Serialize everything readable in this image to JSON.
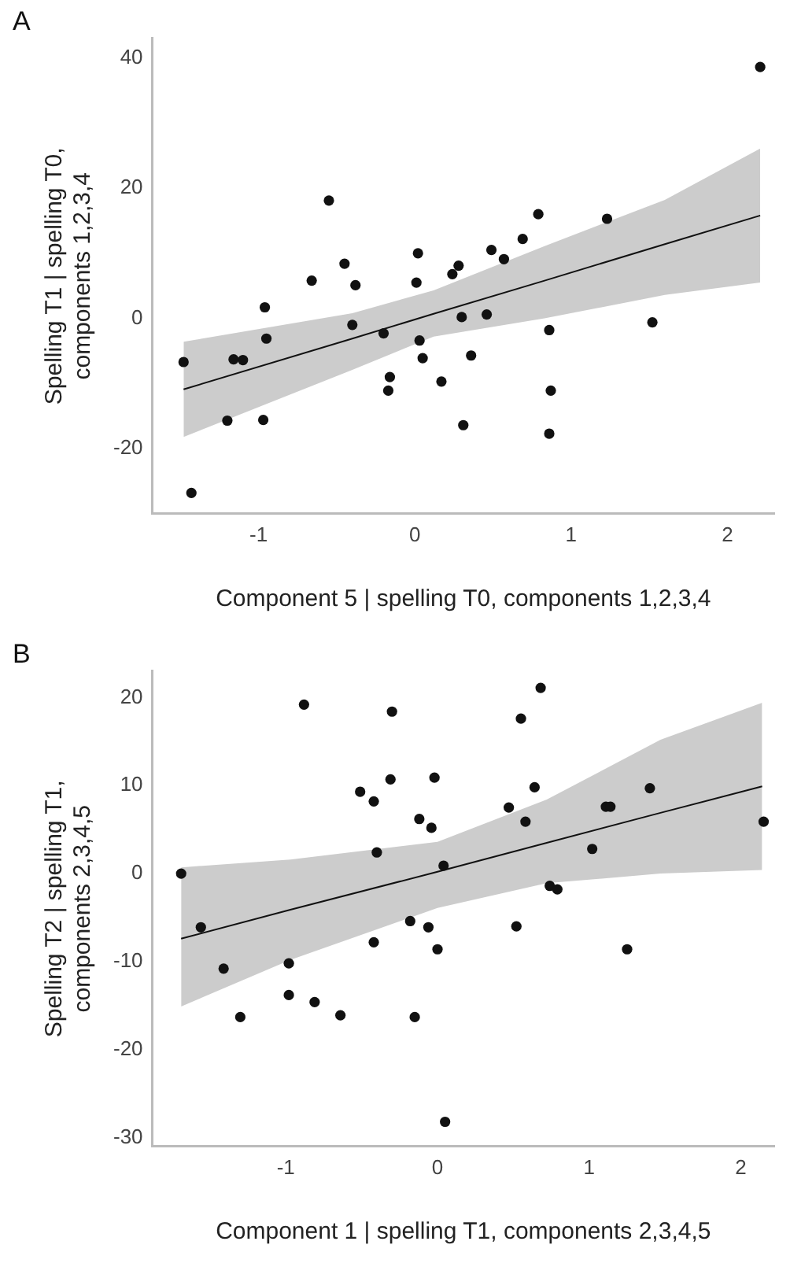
{
  "chart_data": [
    {
      "type": "scatter",
      "title": "A",
      "xlabel": "Component 5 | spelling T0, components 1,2,3,4",
      "ylabel": "Spelling T1 | spelling T0,\ncomponents 1,2,3,4",
      "grid": false,
      "marker": "circle",
      "xlim": [
        -1.68,
        2.3
      ],
      "ylim": [
        -30,
        43
      ],
      "xticks": [
        -1,
        0,
        1,
        2
      ],
      "yticks": [
        -20,
        0,
        20,
        40
      ],
      "series": [
        {
          "type": "line",
          "color": "#111111",
          "marker": "none",
          "x": [
            -1.48,
            -0.4,
            0.12,
            0.83,
            1.6,
            2.21
          ],
          "values": [
            -10.9,
            -3.1,
            0.7,
            5.8,
            11.4,
            15.8
          ],
          "lower": [
            -18.2,
            -7.9,
            -2.8,
            0,
            3.6,
            5.5
          ],
          "upper": [
            -3.6,
            0.8,
            4.3,
            11.1,
            18.2,
            26.1
          ]
        },
        {
          "type": "scatter",
          "color": "#111111",
          "x": [
            -1.48,
            -1.43,
            -1.2,
            -1.16,
            -1.1,
            -0.97,
            -0.96,
            -0.95,
            -0.66,
            -0.55,
            -0.45,
            -0.38,
            -0.4,
            -0.2,
            -0.16,
            -0.17,
            0.02,
            0.01,
            0.03,
            0.05,
            0.17,
            0.24,
            0.28,
            0.3,
            0.46,
            0.36,
            0.31,
            0.49,
            0.57,
            0.69,
            0.79,
            1.23,
            0.86,
            0.87,
            0.86,
            1.52,
            2.21
          ],
          "values": [
            -6.7,
            -26.8,
            -15.7,
            -6.3,
            -6.4,
            -15.6,
            1.7,
            -3.1,
            5.8,
            18.1,
            8.4,
            5.1,
            -1,
            -2.3,
            -9,
            -11.1,
            10,
            5.5,
            -3.4,
            -6.1,
            -9.7,
            6.8,
            8.1,
            0.2,
            0.6,
            -5.7,
            -16.4,
            10.5,
            9.1,
            12.2,
            16,
            15.3,
            -1.8,
            -11.1,
            -17.7,
            -0.6,
            38.6
          ]
        }
      ]
    },
    {
      "type": "scatter",
      "title": "B",
      "xlabel": "Component 1 | spelling T1, components 2,3,4,5",
      "ylabel": "Spelling T2 | spelling T1,\ncomponents 2,3,4,5",
      "grid": false,
      "marker": "circle",
      "xlim": [
        -1.88,
        2.22
      ],
      "ylim": [
        -31,
        23
      ],
      "xticks": [
        -1,
        0,
        1,
        2
      ],
      "yticks": [
        -30,
        -20,
        -10,
        0,
        10,
        20
      ],
      "series": [
        {
          "type": "line",
          "color": "#111111",
          "marker": "none",
          "x": [
            -1.69,
            -0.97,
            0,
            0.72,
            1.47,
            2.14
          ],
          "values": [
            -7.4,
            -4.1,
            0.2,
            3.5,
            6.9,
            9.9
          ],
          "lower": [
            -15.1,
            -9.8,
            -3.9,
            -1.1,
            0,
            0.4
          ],
          "upper": [
            0.7,
            1.6,
            3.6,
            8.4,
            15.2,
            19.4
          ]
        },
        {
          "type": "scatter",
          "color": "#111111",
          "x": [
            -1.69,
            -1.56,
            -1.41,
            -1.3,
            -0.88,
            -0.98,
            -0.98,
            -0.81,
            -0.64,
            -0.51,
            -0.42,
            -0.3,
            -0.31,
            -0.4,
            -0.42,
            -0.18,
            -0.15,
            -0.12,
            -0.04,
            -0.02,
            -0.06,
            0,
            0.04,
            0.05,
            0.68,
            0.55,
            0.64,
            0.47,
            0.58,
            1.02,
            0.74,
            0.79,
            0.52,
            1.25,
            1.11,
            1.14,
            1.4,
            2.15
          ],
          "values": [
            0,
            -6.1,
            -10.8,
            -16.3,
            19.2,
            -10.2,
            -13.8,
            -14.6,
            -16.1,
            9.3,
            8.2,
            18.4,
            10.7,
            2.4,
            -7.8,
            -5.4,
            -16.3,
            6.2,
            5.2,
            10.9,
            -6.1,
            -8.6,
            0.9,
            -28.2,
            21.1,
            17.6,
            9.8,
            7.5,
            5.9,
            2.8,
            -1.4,
            -1.8,
            -6,
            -8.6,
            7.6,
            7.6,
            9.7,
            5.9
          ]
        }
      ]
    }
  ]
}
